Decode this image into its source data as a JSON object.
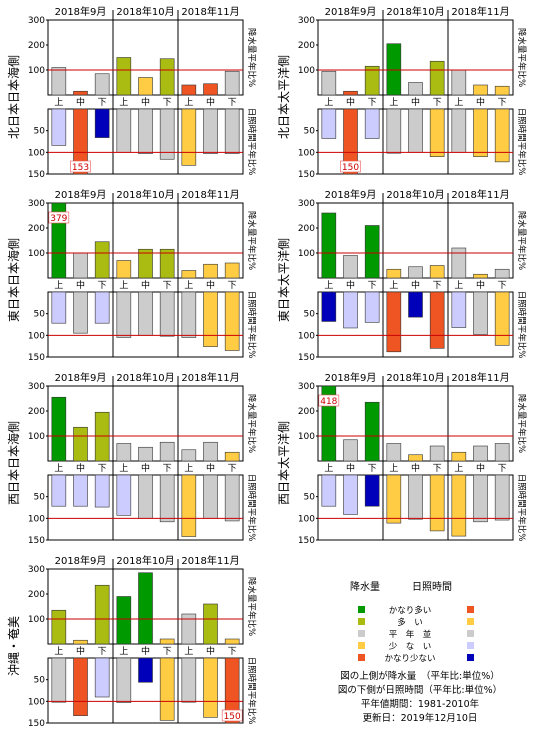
{
  "months": [
    "2018年9月",
    "2018年10月",
    "2018年11月"
  ],
  "decades": [
    "上",
    "中",
    "下",
    "上",
    "中",
    "下",
    "上",
    "中",
    "下"
  ],
  "axis_labels": {
    "precip": "降水量平年比%",
    "sun": "日照時間平年比%"
  },
  "legend": {
    "precip_title": "降水量",
    "sun_title": "日照時間",
    "categories": [
      {
        "label": "かなり多い",
        "precip_color": "#009900",
        "sun_color": "#ee5522"
      },
      {
        "label": "多　い",
        "precip_color": "#aabb11",
        "sun_color": "#ffcc44"
      },
      {
        "label": "平　年　並",
        "precip_color": "#cccccc",
        "sun_color": "#cccccc"
      },
      {
        "label": "少　な　い",
        "precip_color": "#ffcc44",
        "sun_color": "#ccccff"
      },
      {
        "label": "かなり少ない",
        "precip_color": "#ee5522",
        "sun_color": "#0000bb"
      }
    ]
  },
  "notes": {
    "line1": "図の上側が降水量　（平年比:単位%）",
    "line2": "図の下側が日照時間（平年比:単位%）",
    "line3": "平年値期間：1981-2010年",
    "line4": "更新日：2019年12月10日"
  },
  "chart_data": [
    {
      "type": "bar",
      "region": "北日本日本海側",
      "x": [
        "2018年9月上",
        "2018年9月中",
        "2018年9月下",
        "2018年10月上",
        "2018年10月中",
        "2018年10月下",
        "2018年11月上",
        "2018年11月中",
        "2018年11月下"
      ],
      "precip": [
        110,
        15,
        85,
        150,
        70,
        145,
        40,
        45,
        95
      ],
      "precip_colors": [
        "#cccccc",
        "#ee5522",
        "#cccccc",
        "#aabb11",
        "#ffcc44",
        "#aabb11",
        "#ee5522",
        "#ee5522",
        "#cccccc"
      ],
      "precip_ylim": [
        0,
        300
      ],
      "precip_yticks": [
        100,
        200,
        300
      ],
      "sun": [
        84,
        153,
        66,
        100,
        103,
        116,
        130,
        103,
        103
      ],
      "sun_colors": [
        "#ccccff",
        "#ee5522",
        "#0000bb",
        "#cccccc",
        "#cccccc",
        "#cccccc",
        "#ffcc44",
        "#cccccc",
        "#cccccc"
      ],
      "sun_ylim": [
        0,
        150
      ],
      "sun_yticks": [
        50,
        100,
        150
      ],
      "overflow_labels": [
        {
          "index": 1,
          "value": "153",
          "panel": "sun"
        }
      ]
    },
    {
      "type": "bar",
      "region": "北日本太平洋側",
      "x": [
        "2018年9月上",
        "2018年9月中",
        "2018年9月下",
        "2018年10月上",
        "2018年10月中",
        "2018年10月下",
        "2018年11月上",
        "2018年11月中",
        "2018年11月下"
      ],
      "precip": [
        95,
        15,
        115,
        205,
        50,
        135,
        100,
        40,
        35
      ],
      "precip_colors": [
        "#cccccc",
        "#ee5522",
        "#aabb11",
        "#009900",
        "#cccccc",
        "#aabb11",
        "#cccccc",
        "#ffcc44",
        "#ffcc44"
      ],
      "precip_ylim": [
        0,
        300
      ],
      "precip_yticks": [
        100,
        200,
        300
      ],
      "sun": [
        68,
        150,
        68,
        102,
        100,
        110,
        100,
        110,
        122
      ],
      "sun_colors": [
        "#ccccff",
        "#ee5522",
        "#ccccff",
        "#cccccc",
        "#cccccc",
        "#ffcc44",
        "#cccccc",
        "#ffcc44",
        "#ffcc44"
      ],
      "sun_ylim": [
        0,
        150
      ],
      "sun_yticks": [
        50,
        100,
        150
      ],
      "overflow_labels": [
        {
          "index": 1,
          "value": "150",
          "panel": "sun"
        }
      ]
    },
    {
      "type": "bar",
      "region": "東日本日本海側",
      "x": [
        "2018年9月上",
        "2018年9月中",
        "2018年9月下",
        "2018年10月上",
        "2018年10月中",
        "2018年10月下",
        "2018年11月上",
        "2018年11月中",
        "2018年11月下"
      ],
      "precip": [
        379,
        100,
        145,
        70,
        115,
        115,
        30,
        55,
        60
      ],
      "precip_colors": [
        "#009900",
        "#cccccc",
        "#aabb11",
        "#ffcc44",
        "#aabb11",
        "#aabb11",
        "#ffcc44",
        "#ffcc44",
        "#ffcc44"
      ],
      "precip_ylim": [
        0,
        300
      ],
      "precip_yticks": [
        100,
        200,
        300
      ],
      "overflow_labels": [
        {
          "index": 0,
          "value": "379",
          "panel": "precip"
        }
      ],
      "sun": [
        72,
        95,
        72,
        105,
        100,
        102,
        105,
        126,
        135
      ],
      "sun_colors": [
        "#ccccff",
        "#cccccc",
        "#ccccff",
        "#cccccc",
        "#cccccc",
        "#cccccc",
        "#cccccc",
        "#ffcc44",
        "#ffcc44"
      ],
      "sun_ylim": [
        0,
        150
      ],
      "sun_yticks": [
        50,
        100,
        150
      ]
    },
    {
      "type": "bar",
      "region": "東日本太平洋側",
      "x": [
        "2018年9月上",
        "2018年9月中",
        "2018年9月下",
        "2018年10月上",
        "2018年10月中",
        "2018年10月下",
        "2018年11月上",
        "2018年11月中",
        "2018年11月下"
      ],
      "precip": [
        260,
        90,
        210,
        35,
        45,
        50,
        120,
        15,
        35
      ],
      "precip_colors": [
        "#009900",
        "#cccccc",
        "#009900",
        "#ffcc44",
        "#cccccc",
        "#ffcc44",
        "#cccccc",
        "#ffcc44",
        "#cccccc"
      ],
      "precip_ylim": [
        0,
        300
      ],
      "precip_yticks": [
        100,
        200,
        300
      ],
      "sun": [
        68,
        83,
        70,
        138,
        58,
        130,
        82,
        98,
        123
      ],
      "sun_colors": [
        "#0000bb",
        "#ccccff",
        "#ccccff",
        "#ee5522",
        "#0000bb",
        "#ee5522",
        "#ccccff",
        "#cccccc",
        "#ffcc44"
      ],
      "sun_ylim": [
        0,
        150
      ],
      "sun_yticks": [
        50,
        100,
        150
      ]
    },
    {
      "type": "bar",
      "region": "西日本日本海側",
      "x": [
        "2018年9月上",
        "2018年9月中",
        "2018年9月下",
        "2018年10月上",
        "2018年10月中",
        "2018年10月下",
        "2018年11月上",
        "2018年11月中",
        "2018年11月下"
      ],
      "precip": [
        255,
        135,
        195,
        70,
        55,
        75,
        45,
        75,
        35
      ],
      "precip_colors": [
        "#009900",
        "#aabb11",
        "#aabb11",
        "#cccccc",
        "#cccccc",
        "#cccccc",
        "#cccccc",
        "#cccccc",
        "#ffcc44"
      ],
      "precip_ylim": [
        0,
        300
      ],
      "precip_yticks": [
        100,
        200,
        300
      ],
      "sun": [
        72,
        72,
        74,
        93,
        100,
        108,
        142,
        100,
        106
      ],
      "sun_colors": [
        "#ccccff",
        "#ccccff",
        "#ccccff",
        "#ccccff",
        "#cccccc",
        "#cccccc",
        "#ffcc44",
        "#cccccc",
        "#cccccc"
      ],
      "sun_ylim": [
        0,
        150
      ],
      "sun_yticks": [
        50,
        100,
        150
      ]
    },
    {
      "type": "bar",
      "region": "西日本太平洋側",
      "x": [
        "2018年9月上",
        "2018年9月中",
        "2018年9月下",
        "2018年10月上",
        "2018年10月中",
        "2018年10月下",
        "2018年11月上",
        "2018年11月中",
        "2018年11月下"
      ],
      "precip": [
        418,
        85,
        235,
        70,
        25,
        60,
        35,
        60,
        70
      ],
      "precip_colors": [
        "#009900",
        "#cccccc",
        "#009900",
        "#cccccc",
        "#ffcc44",
        "#cccccc",
        "#ffcc44",
        "#cccccc",
        "#cccccc"
      ],
      "precip_ylim": [
        0,
        300
      ],
      "precip_yticks": [
        100,
        200,
        300
      ],
      "overflow_labels": [
        {
          "index": 0,
          "value": "418",
          "panel": "precip"
        }
      ],
      "sun": [
        72,
        91,
        72,
        111,
        102,
        129,
        141,
        108,
        104
      ],
      "sun_colors": [
        "#ccccff",
        "#ccccff",
        "#0000bb",
        "#ffcc44",
        "#cccccc",
        "#ffcc44",
        "#ffcc44",
        "#cccccc",
        "#cccccc"
      ],
      "sun_ylim": [
        0,
        150
      ],
      "sun_yticks": [
        50,
        100,
        150
      ]
    },
    {
      "type": "bar",
      "region": "沖縄・奄美",
      "x": [
        "2018年9月上",
        "2018年9月中",
        "2018年9月下",
        "2018年10月上",
        "2018年10月中",
        "2018年10月下",
        "2018年11月上",
        "2018年11月中",
        "2018年11月下"
      ],
      "precip": [
        135,
        15,
        235,
        190,
        285,
        20,
        120,
        160,
        20
      ],
      "precip_colors": [
        "#aabb11",
        "#ffcc44",
        "#aabb11",
        "#009900",
        "#009900",
        "#ffcc44",
        "#cccccc",
        "#aabb11",
        "#ffcc44"
      ],
      "precip_ylim": [
        0,
        300
      ],
      "precip_yticks": [
        100,
        200,
        300
      ],
      "sun": [
        102,
        133,
        90,
        103,
        56,
        144,
        102,
        137,
        150
      ],
      "sun_colors": [
        "#cccccc",
        "#ee5522",
        "#ccccff",
        "#cccccc",
        "#0000bb",
        "#ffcc44",
        "#cccccc",
        "#ffcc44",
        "#ee5522"
      ],
      "sun_ylim": [
        0,
        150
      ],
      "sun_yticks": [
        50,
        100,
        150
      ],
      "overflow_labels": [
        {
          "index": 8,
          "value": "150",
          "panel": "sun"
        }
      ]
    }
  ]
}
